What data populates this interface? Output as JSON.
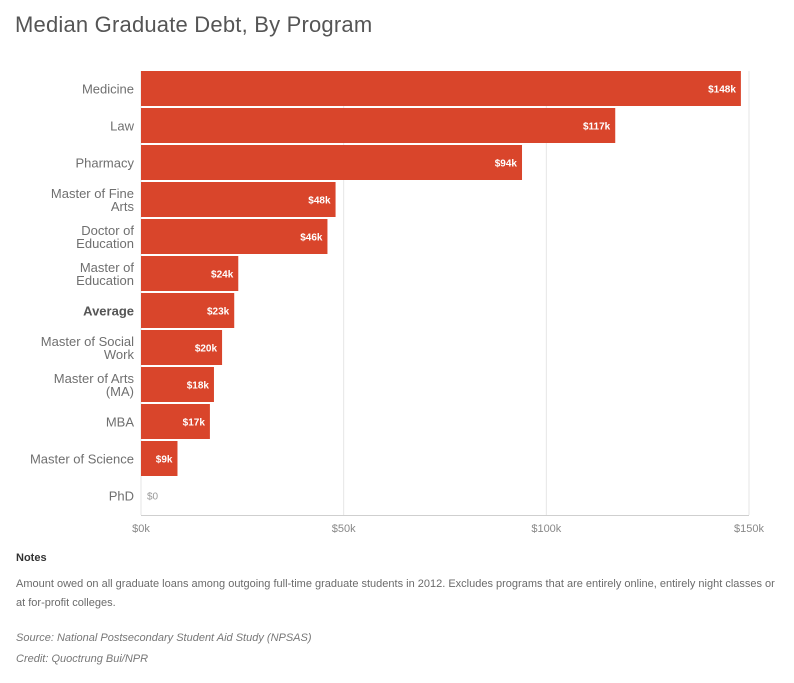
{
  "chart_data": {
    "type": "bar",
    "orientation": "horizontal",
    "title": "Median Graduate Debt, By Program",
    "categories": [
      "Medicine",
      "Law",
      "Pharmacy",
      "Master of Fine Arts",
      "Doctor of Education",
      "Master of Education",
      "Average",
      "Master of Social Work",
      "Master of Arts (MA)",
      "MBA",
      "Master of Science",
      "PhD"
    ],
    "category_lines": [
      [
        "Medicine"
      ],
      [
        "Law"
      ],
      [
        "Pharmacy"
      ],
      [
        "Master of Fine",
        "Arts"
      ],
      [
        "Doctor of",
        "Education"
      ],
      [
        "Master of",
        "Education"
      ],
      [
        "Average"
      ],
      [
        "Master of Social",
        "Work"
      ],
      [
        "Master of Arts",
        "(MA)"
      ],
      [
        "MBA"
      ],
      [
        "Master of Science"
      ],
      [
        "PhD"
      ]
    ],
    "values": [
      148,
      117,
      94,
      48,
      46,
      24,
      23,
      20,
      18,
      17,
      9,
      0
    ],
    "value_labels": [
      "$148k",
      "$117k",
      "$94k",
      "$48k",
      "$46k",
      "$24k",
      "$23k",
      "$20k",
      "$18k",
      "$17k",
      "$9k",
      "$0"
    ],
    "highlight_category": "Average",
    "x_ticks": [
      0,
      50,
      100,
      150
    ],
    "x_tick_labels": [
      "$0k",
      "$50k",
      "$100k",
      "$150k"
    ],
    "xlim": [
      0,
      150
    ],
    "unit": "thousands of dollars",
    "grid": "vertical",
    "bar_color": "#d9452b"
  },
  "notes": {
    "heading": "Notes",
    "text": "Amount owed on all graduate loans among outgoing full-time graduate students in 2012. Excludes programs that are entirely online, entirely night classes or at for-profit colleges.",
    "source": "Source: National Postsecondary Student Aid Study (NPSAS)",
    "credit": "Credit: Quoctrung Bui/NPR"
  }
}
